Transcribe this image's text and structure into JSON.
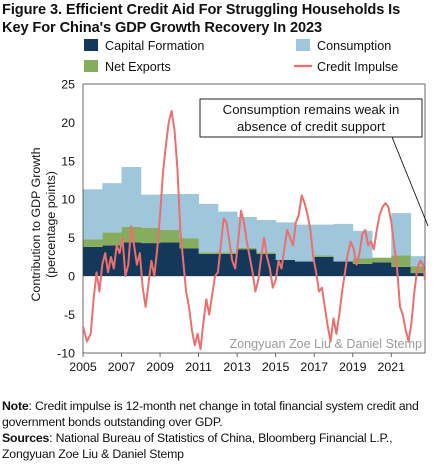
{
  "figure": {
    "title_line1": "Figure 3. Efficient Credit Aid For Struggling Households Is",
    "title_line2": "Key For China's GDP Growth Recovery In 2023",
    "note_label": "Note",
    "note_text": ": Credit impulse is 12-month net change in total financial system credit and government bonds outstanding over  GDP.",
    "sources_label": "Sources",
    "sources_text": ": National Bureau of Statistics of China, Bloomberg Financial L.P., Zongyuan Zoe Liu & Daniel Stemp"
  },
  "colors": {
    "capital_formation": "#14385a",
    "net_exports": "#86ac5e",
    "consumption": "#9fc6da",
    "credit_impulse": "#ec6f6f"
  },
  "chart_data": {
    "type": "area",
    "title": "",
    "xlabel": "",
    "ylabel": "Contribution to GDP Growth (percentage points)",
    "ylabel_line1": "Contribution to GDP Growth",
    "ylabel_line2": "(percentage points)",
    "ylim": [
      -10,
      25
    ],
    "xlim": [
      2005,
      2022.75
    ],
    "yticks": [
      -10,
      -5,
      0,
      5,
      10,
      15,
      20,
      25
    ],
    "xticks": [
      2005,
      2007,
      2009,
      2011,
      2013,
      2015,
      2017,
      2019,
      2021
    ],
    "grid": false,
    "legend_position": "top",
    "legend": [
      "Capital Formation",
      "Consumption",
      "Net Exports",
      "Credit Impulse"
    ],
    "annotation": "Consumption remains weak in absence of credit support",
    "annotation_line1": "Consumption remains weak in",
    "annotation_line2": "absence of credit support",
    "watermark": "Zongyuan Zoe Liu & Daniel Stemp",
    "stacked_series": {
      "x": [
        2005,
        2006,
        2007,
        2008,
        2009,
        2010,
        2011,
        2012,
        2013,
        2014,
        2015,
        2016,
        2017,
        2018,
        2019,
        2020,
        2021,
        2022
      ],
      "series": [
        {
          "name": "Capital Formation",
          "values": [
            3.8,
            4.0,
            4.4,
            4.3,
            4.4,
            3.6,
            2.9,
            2.9,
            3.5,
            2.9,
            2.2,
            2.4,
            2.5,
            2.2,
            1.6,
            1.8,
            1.2,
            0.4
          ]
        },
        {
          "name": "Net Exports",
          "values": [
            1.0,
            1.7,
            2.0,
            2.0,
            1.6,
            1.3,
            0.2,
            0.2,
            0.2,
            0.2,
            -0.1,
            -0.5,
            0.2,
            -0.3,
            0.7,
            0.6,
            1.5,
            0.9
          ]
        },
        {
          "name": "Consumption",
          "values": [
            6.5,
            6.4,
            7.8,
            4.3,
            4.7,
            5.8,
            6.3,
            5.3,
            4.0,
            4.2,
            4.9,
            4.8,
            4.0,
            4.9,
            3.6,
            0.0,
            5.5,
            1.3
          ]
        }
      ]
    },
    "line_series": {
      "name": "Credit Impulse",
      "x": [
        2005.0,
        2005.2,
        2005.4,
        2005.55,
        2005.7,
        2005.85,
        2006.0,
        2006.15,
        2006.3,
        2006.45,
        2006.6,
        2006.75,
        2006.9,
        2007.05,
        2007.2,
        2007.35,
        2007.5,
        2007.65,
        2007.8,
        2007.95,
        2008.1,
        2008.25,
        2008.4,
        2008.55,
        2008.7,
        2008.85,
        2009.0,
        2009.15,
        2009.3,
        2009.45,
        2009.6,
        2009.75,
        2009.9,
        2010.05,
        2010.2,
        2010.35,
        2010.5,
        2010.65,
        2010.8,
        2010.95,
        2011.1,
        2011.25,
        2011.4,
        2011.55,
        2011.7,
        2011.85,
        2012.0,
        2012.15,
        2012.3,
        2012.45,
        2012.6,
        2012.75,
        2012.9,
        2013.05,
        2013.2,
        2013.35,
        2013.5,
        2013.65,
        2013.8,
        2013.95,
        2014.1,
        2014.25,
        2014.4,
        2014.55,
        2014.7,
        2014.85,
        2015.0,
        2015.15,
        2015.3,
        2015.45,
        2015.6,
        2015.75,
        2015.9,
        2016.05,
        2016.2,
        2016.35,
        2016.5,
        2016.65,
        2016.8,
        2016.95,
        2017.1,
        2017.25,
        2017.4,
        2017.55,
        2017.7,
        2017.85,
        2018.0,
        2018.15,
        2018.3,
        2018.45,
        2018.6,
        2018.75,
        2018.9,
        2019.05,
        2019.2,
        2019.35,
        2019.5,
        2019.65,
        2019.8,
        2019.95,
        2020.1,
        2020.25,
        2020.4,
        2020.55,
        2020.7,
        2020.85,
        2021.0,
        2021.15,
        2021.3,
        2021.45,
        2021.6,
        2021.75,
        2021.9,
        2022.05,
        2022.2,
        2022.35,
        2022.5,
        2022.65,
        2022.75
      ],
      "values": [
        -6.5,
        -8.5,
        -7.5,
        -3.0,
        0.5,
        -2.0,
        1.5,
        3.0,
        0.5,
        2.5,
        1.0,
        4.0,
        3.0,
        5.0,
        0.0,
        1.5,
        6.5,
        4.0,
        1.5,
        3.0,
        -1.5,
        -4.0,
        -1.0,
        2.0,
        0.0,
        3.5,
        8.0,
        13.5,
        17.0,
        20.0,
        21.5,
        19.0,
        14.0,
        6.0,
        2.0,
        -2.0,
        -4.0,
        -7.0,
        -9.0,
        -7.5,
        -9.5,
        -6.0,
        -3.0,
        -5.0,
        -2.5,
        0.0,
        0.5,
        4.0,
        7.5,
        7.0,
        4.5,
        2.0,
        1.0,
        4.5,
        8.5,
        7.0,
        4.5,
        2.5,
        0.5,
        -2.0,
        -0.5,
        2.5,
        5.0,
        2.5,
        1.0,
        -1.5,
        -0.5,
        2.0,
        1.0,
        3.5,
        6.0,
        5.0,
        4.0,
        7.0,
        8.0,
        10.5,
        9.5,
        8.0,
        6.0,
        2.5,
        0.5,
        -2.0,
        -1.5,
        -4.0,
        -6.5,
        -8.5,
        -5.5,
        -7.5,
        -5.0,
        -2.0,
        0.5,
        3.0,
        4.5,
        3.5,
        1.5,
        3.0,
        5.5,
        6.0,
        4.0,
        4.5,
        3.5,
        6.0,
        8.0,
        9.0,
        9.5,
        9.0,
        7.0,
        4.0,
        1.0,
        -4.0,
        -5.0,
        -7.0,
        -8.5,
        -6.0,
        -2.0,
        1.0,
        2.0,
        1.5,
        -0.5
      ]
    }
  }
}
